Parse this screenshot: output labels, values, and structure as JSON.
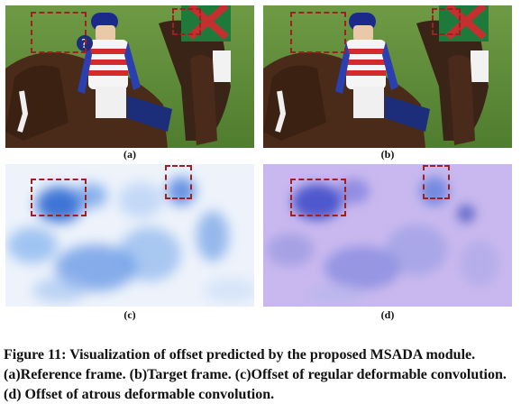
{
  "figure": {
    "labels": {
      "a": "(a)",
      "b": "(b)",
      "c": "(c)",
      "d": "(d)"
    },
    "caption": "Figure 11: Visualization of offset predicted by the proposed MSADA module. (a)Reference frame. (b)Target frame. (c)Offset of regular deformable convolution. (d) Offset of atrous deformable convolution.",
    "colors": {
      "highlight_box": "#a02020",
      "grass": "#5e8d3a",
      "offset_blue": "#2f6bd0",
      "atrous_bg": "#c9b8ef"
    }
  }
}
